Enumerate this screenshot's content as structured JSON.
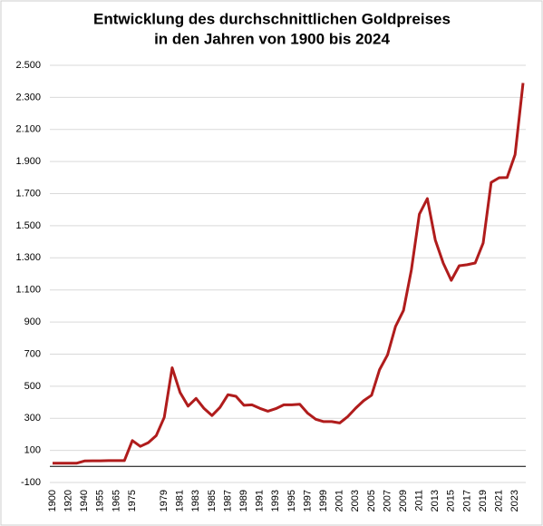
{
  "chart_data": {
    "type": "line",
    "title": "Entwicklung des durchschnittlichen Goldpreises",
    "subtitle": "in den Jahren von 1900 bis 2024",
    "categories": [
      "1900",
      null,
      "1920",
      null,
      "1940",
      null,
      "1955",
      null,
      "1965",
      null,
      "1975",
      null,
      null,
      null,
      "1979",
      null,
      "1981",
      null,
      "1983",
      null,
      "1985",
      null,
      "1987",
      null,
      "1989",
      null,
      "1991",
      null,
      "1993",
      null,
      "1995",
      null,
      "1997",
      null,
      "1999",
      null,
      "2001",
      null,
      "2003",
      null,
      "2005",
      null,
      "2007",
      null,
      "2009",
      null,
      "2011",
      null,
      "2013",
      null,
      "2015",
      null,
      "2017",
      null,
      "2019",
      null,
      "2021",
      null,
      "2023",
      null
    ],
    "series": [
      {
        "color": "#b01c1c",
        "values": [
          20,
          20,
          20,
          20,
          34,
          35,
          35,
          36,
          36,
          36,
          161,
          125,
          148,
          193,
          306,
          615,
          460,
          376,
          424,
          361,
          317,
          368,
          447,
          437,
          381,
          384,
          362,
          344,
          360,
          384,
          384,
          388,
          331,
          294,
          279,
          279,
          271,
          310,
          363,
          409,
          444,
          603,
          695,
          872,
          972,
          1225,
          1572,
          1669,
          1411,
          1266,
          1160,
          1251,
          1257,
          1268,
          1393,
          1770,
          1799,
          1800,
          1943,
          2390
        ]
      }
    ],
    "ylim": [
      -100,
      2500
    ],
    "yticks": [
      -100,
      100,
      300,
      500,
      700,
      900,
      {
        "value": 1100,
        "label": "1.100"
      },
      {
        "value": 1300,
        "label": "1.300"
      },
      {
        "value": 1500,
        "label": "1.500"
      },
      {
        "value": 1700,
        "label": "1.700"
      },
      {
        "value": 1900,
        "label": "1.900"
      },
      {
        "value": 2100,
        "label": "2.100"
      },
      {
        "value": 2300,
        "label": "2.300"
      },
      {
        "value": 2500,
        "label": "2.500"
      }
    ],
    "grid": true
  }
}
